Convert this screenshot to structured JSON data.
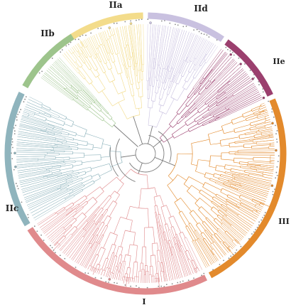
{
  "clades": [
    {
      "label": "IIa",
      "color": "#f3dc8b"
    },
    {
      "label": "IId",
      "color": "#c9c1e0"
    },
    {
      "label": "IIe",
      "color": "#9b3f6e"
    },
    {
      "label": "III",
      "color": "#e38a2c"
    },
    {
      "label": "I",
      "color": "#e08a8c"
    },
    {
      "label": "IIc",
      "color": "#8fb4bd"
    },
    {
      "label": "IIb",
      "color": "#9dc48c"
    }
  ],
  "backbone_color": "#7a7a7a"
}
